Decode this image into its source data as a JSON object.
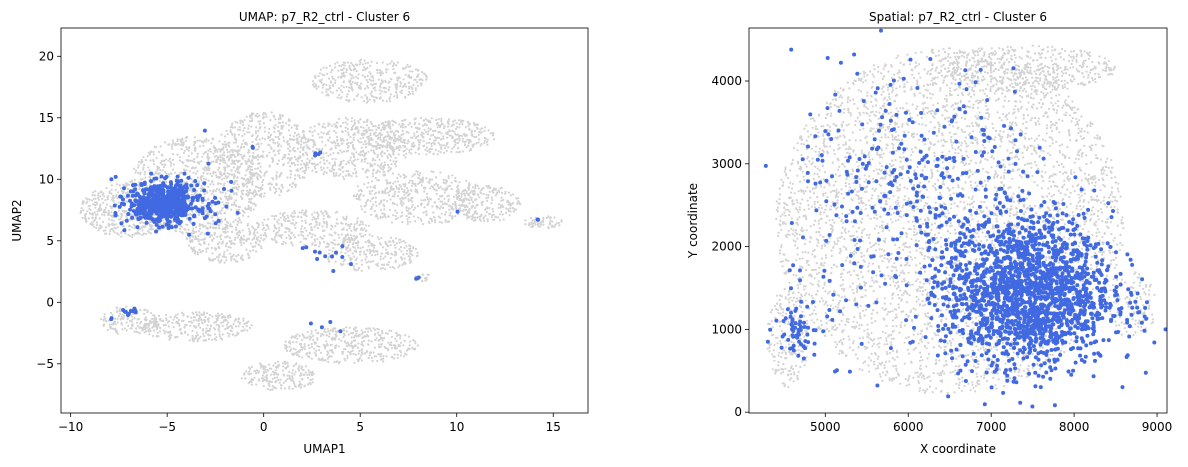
{
  "colors": {
    "background_points": "#d3d3d3",
    "cluster_points": "#4169e1"
  },
  "chart_data": [
    {
      "type": "scatter",
      "title": "UMAP: p7_R2_ctrl - Cluster 6",
      "xlabel": "UMAP1",
      "ylabel": "UMAP2",
      "xlim": [
        -10.5,
        16.8
      ],
      "ylim": [
        -9.0,
        22.3
      ],
      "xticks": [
        -10,
        -5,
        0,
        5,
        10,
        15
      ],
      "yticks": [
        -5,
        0,
        5,
        10,
        15,
        20
      ],
      "grid": false,
      "series": [
        {
          "role": "background",
          "color": "#d3d3d3",
          "regions": [
            {
              "cx": -3.5,
              "cy": 9.5,
              "rx": 3.5,
              "ry": 4.0,
              "n": 900
            },
            {
              "cx": -7.0,
              "cy": 7.5,
              "rx": 2.5,
              "ry": 2.2,
              "n": 500
            },
            {
              "cx": 0.0,
              "cy": 12.0,
              "rx": 2.5,
              "ry": 3.5,
              "n": 500
            },
            {
              "cx": 4.5,
              "cy": 12.5,
              "rx": 3.0,
              "ry": 2.5,
              "n": 500
            },
            {
              "cx": 5.5,
              "cy": 18.0,
              "rx": 3.0,
              "ry": 1.8,
              "n": 350
            },
            {
              "cx": 8.5,
              "cy": 13.5,
              "rx": 3.5,
              "ry": 1.5,
              "n": 400
            },
            {
              "cx": 8.0,
              "cy": 8.5,
              "rx": 3.5,
              "ry": 2.2,
              "n": 450
            },
            {
              "cx": 11.5,
              "cy": 8.0,
              "rx": 1.8,
              "ry": 1.5,
              "n": 200
            },
            {
              "cx": 2.5,
              "cy": 6.0,
              "rx": 3.0,
              "ry": 1.5,
              "n": 300
            },
            {
              "cx": 5.5,
              "cy": 4.0,
              "rx": 2.5,
              "ry": 1.5,
              "n": 250
            },
            {
              "cx": -2.0,
              "cy": 5.0,
              "rx": 2.0,
              "ry": 1.8,
              "n": 250
            },
            {
              "cx": 14.5,
              "cy": 6.5,
              "rx": 1.0,
              "ry": 0.5,
              "n": 60
            },
            {
              "cx": -7.0,
              "cy": -1.5,
              "rx": 1.5,
              "ry": 1.2,
              "n": 150
            },
            {
              "cx": -3.5,
              "cy": -2.0,
              "rx": 3.0,
              "ry": 1.2,
              "n": 300
            },
            {
              "cx": 4.5,
              "cy": -3.5,
              "rx": 3.5,
              "ry": 1.5,
              "n": 400
            },
            {
              "cx": 0.8,
              "cy": -6.0,
              "rx": 2.0,
              "ry": 1.2,
              "n": 200
            },
            {
              "cx": 8.3,
              "cy": 2.0,
              "rx": 0.5,
              "ry": 0.3,
              "n": 20
            }
          ]
        },
        {
          "role": "cluster",
          "color": "#4169e1",
          "regions": [
            {
              "cx": -5.2,
              "cy": 8.0,
              "rx": 1.8,
              "ry": 1.6,
              "n": 550
            },
            {
              "cx": -4.5,
              "cy": 8.5,
              "rx": 3.0,
              "ry": 2.5,
              "n": 60
            },
            {
              "cx": 2.8,
              "cy": 3.8,
              "rx": 1.5,
              "ry": 1.2,
              "n": 12
            },
            {
              "cx": 2.8,
              "cy": 12.0,
              "rx": 0.2,
              "ry": 0.2,
              "n": 4
            },
            {
              "cx": -7.0,
              "cy": -0.8,
              "rx": 0.4,
              "ry": 0.3,
              "n": 10
            },
            {
              "cx": 8.0,
              "cy": 2.0,
              "rx": 0.1,
              "ry": 0.1,
              "n": 3
            },
            {
              "cx": 14.2,
              "cy": 6.8,
              "rx": 0.1,
              "ry": 0.1,
              "n": 2
            },
            {
              "cx": 3.0,
              "cy": -2.0,
              "rx": 1.5,
              "ry": 0.4,
              "n": 4
            },
            {
              "cx": -8.0,
              "cy": -1.5,
              "rx": 0.2,
              "ry": 0.4,
              "n": 2
            },
            {
              "cx": -0.5,
              "cy": 12.5,
              "rx": 0.2,
              "ry": 0.2,
              "n": 2
            },
            {
              "cx": 10.1,
              "cy": 7.4,
              "rx": 0.1,
              "ry": 0.1,
              "n": 1
            },
            {
              "cx": -3.0,
              "cy": 14.0,
              "rx": 0.1,
              "ry": 0.1,
              "n": 1
            }
          ]
        }
      ]
    },
    {
      "type": "scatter",
      "title": "Spatial: p7_R2_ctrl - Cluster 6",
      "xlabel": "X coordinate",
      "ylabel": "Y coordinate",
      "xlim": [
        4080,
        9120
      ],
      "ylim": [
        -10,
        4640
      ],
      "xticks": [
        5000,
        6000,
        7000,
        8000,
        9000
      ],
      "yticks": [
        0,
        1000,
        2000,
        3000,
        4000
      ],
      "grid": false,
      "series": [
        {
          "role": "background",
          "color": "#d3d3d3",
          "regions": [
            {
              "cx": 6500,
              "cy": 2300,
              "rx": 2100,
              "ry": 2100,
              "n": 4200
            },
            {
              "cx": 7400,
              "cy": 4150,
              "rx": 1100,
              "ry": 280,
              "n": 500
            },
            {
              "cx": 8700,
              "cy": 1300,
              "rx": 300,
              "ry": 400,
              "n": 120
            },
            {
              "cx": 4550,
              "cy": 900,
              "rx": 250,
              "ry": 600,
              "n": 200
            }
          ]
        },
        {
          "role": "cluster",
          "color": "#4169e1",
          "regions": [
            {
              "cx": 7450,
              "cy": 1450,
              "rx": 1000,
              "ry": 900,
              "n": 1800
            },
            {
              "cx": 6200,
              "cy": 2500,
              "rx": 1600,
              "ry": 1700,
              "n": 380
            },
            {
              "cx": 4650,
              "cy": 1050,
              "rx": 250,
              "ry": 350,
              "n": 60
            },
            {
              "cx": 8700,
              "cy": 1200,
              "rx": 150,
              "ry": 150,
              "n": 8
            }
          ]
        }
      ]
    }
  ]
}
